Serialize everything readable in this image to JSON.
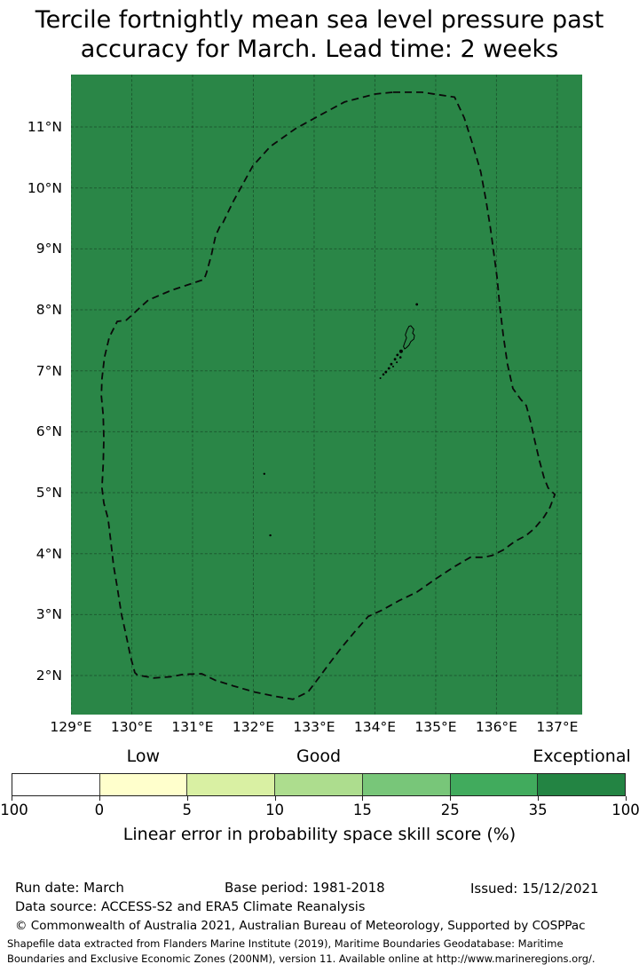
{
  "title": {
    "line1": "Tercile fortnightly mean sea level pressure past",
    "line2": "accuracy for March. Lead time: 2 weeks"
  },
  "map": {
    "region": "Palau Exclusive Economic Zone",
    "fill_color": "#2a8647",
    "grid_color": "rgba(0,0,0,0.32)",
    "boundary_color": "#0a0a0a",
    "island_outline_color": "#000000",
    "extent": {
      "lon_min": 129.0,
      "lon_max": 137.41,
      "lat_min": 1.36,
      "lat_max": 11.86
    },
    "x_ticks": [
      {
        "value": 129,
        "label": "129°E"
      },
      {
        "value": 130,
        "label": "130°E"
      },
      {
        "value": 131,
        "label": "131°E"
      },
      {
        "value": 132,
        "label": "132°E"
      },
      {
        "value": 133,
        "label": "133°E"
      },
      {
        "value": 134,
        "label": "134°E"
      },
      {
        "value": 135,
        "label": "135°E"
      },
      {
        "value": 136,
        "label": "136°E"
      },
      {
        "value": 137,
        "label": "137°E"
      }
    ],
    "y_ticks": [
      {
        "value": 11,
        "label": "11°N"
      },
      {
        "value": 10,
        "label": "10°N"
      },
      {
        "value": 9,
        "label": "9°N"
      },
      {
        "value": 8,
        "label": "8°N"
      },
      {
        "value": 7,
        "label": "7°N"
      },
      {
        "value": 6,
        "label": "6°N"
      },
      {
        "value": 5,
        "label": "5°N"
      },
      {
        "value": 4,
        "label": "4°N"
      },
      {
        "value": 3,
        "label": "3°N"
      },
      {
        "value": 2,
        "label": "2°N"
      }
    ],
    "eez_boundary_lonlat": [
      [
        134.3,
        11.57
      ],
      [
        134.77,
        11.57
      ],
      [
        135.31,
        11.49
      ],
      [
        135.47,
        11.15
      ],
      [
        135.61,
        10.71
      ],
      [
        135.74,
        10.27
      ],
      [
        135.83,
        9.78
      ],
      [
        135.9,
        9.34
      ],
      [
        135.96,
        8.9
      ],
      [
        136.01,
        8.53
      ],
      [
        136.05,
        8.09
      ],
      [
        136.11,
        7.59
      ],
      [
        136.18,
        7.11
      ],
      [
        136.27,
        6.71
      ],
      [
        136.4,
        6.53
      ],
      [
        136.49,
        6.43
      ],
      [
        136.56,
        6.17
      ],
      [
        136.63,
        5.85
      ],
      [
        136.71,
        5.51
      ],
      [
        136.78,
        5.25
      ],
      [
        136.85,
        5.08
      ],
      [
        136.96,
        4.97
      ],
      [
        136.88,
        4.76
      ],
      [
        136.78,
        4.6
      ],
      [
        136.63,
        4.42
      ],
      [
        136.49,
        4.3
      ],
      [
        136.3,
        4.2
      ],
      [
        136.11,
        4.06
      ],
      [
        135.93,
        3.97
      ],
      [
        135.79,
        3.94
      ],
      [
        135.57,
        3.94
      ],
      [
        135.5,
        3.9
      ],
      [
        135.28,
        3.77
      ],
      [
        134.99,
        3.58
      ],
      [
        134.69,
        3.37
      ],
      [
        134.4,
        3.23
      ],
      [
        134.11,
        3.07
      ],
      [
        133.89,
        2.97
      ],
      [
        133.67,
        2.72
      ],
      [
        133.45,
        2.46
      ],
      [
        133.23,
        2.17
      ],
      [
        133.09,
        1.98
      ],
      [
        132.9,
        1.73
      ],
      [
        132.65,
        1.61
      ],
      [
        132.36,
        1.66
      ],
      [
        132.02,
        1.73
      ],
      [
        131.67,
        1.83
      ],
      [
        131.38,
        1.92
      ],
      [
        131.15,
        2.03
      ],
      [
        130.85,
        2.02
      ],
      [
        130.64,
        1.98
      ],
      [
        130.36,
        1.96
      ],
      [
        130.09,
        2.01
      ],
      [
        130.05,
        2.05
      ],
      [
        129.98,
        2.31
      ],
      [
        129.91,
        2.65
      ],
      [
        129.83,
        3.01
      ],
      [
        129.76,
        3.45
      ],
      [
        129.7,
        3.81
      ],
      [
        129.66,
        4.16
      ],
      [
        129.61,
        4.57
      ],
      [
        129.54,
        4.83
      ],
      [
        129.51,
        5.08
      ],
      [
        129.53,
        5.47
      ],
      [
        129.54,
        5.88
      ],
      [
        129.53,
        6.27
      ],
      [
        129.5,
        6.59
      ],
      [
        129.51,
        6.87
      ],
      [
        129.55,
        7.22
      ],
      [
        129.63,
        7.55
      ],
      [
        129.76,
        7.81
      ],
      [
        129.91,
        7.83
      ],
      [
        130.27,
        8.16
      ],
      [
        130.65,
        8.32
      ],
      [
        131.04,
        8.45
      ],
      [
        131.19,
        8.5
      ],
      [
        131.23,
        8.61
      ],
      [
        131.31,
        8.9
      ],
      [
        131.38,
        9.22
      ],
      [
        131.45,
        9.37
      ],
      [
        131.5,
        9.43
      ],
      [
        131.67,
        9.78
      ],
      [
        131.99,
        10.36
      ],
      [
        132.28,
        10.68
      ],
      [
        132.69,
        10.97
      ],
      [
        133.09,
        11.19
      ],
      [
        133.5,
        11.41
      ],
      [
        134.0,
        11.54
      ]
    ],
    "islands": {
      "main_island_outline_lonlat": [
        [
          134.59,
          7.74
        ],
        [
          134.64,
          7.68
        ],
        [
          134.62,
          7.62
        ],
        [
          134.65,
          7.58
        ],
        [
          134.64,
          7.52
        ],
        [
          134.59,
          7.48
        ],
        [
          134.56,
          7.42
        ],
        [
          134.52,
          7.38
        ],
        [
          134.49,
          7.36
        ],
        [
          134.47,
          7.4
        ],
        [
          134.49,
          7.46
        ],
        [
          134.52,
          7.54
        ],
        [
          134.5,
          7.59
        ],
        [
          134.53,
          7.67
        ],
        [
          134.56,
          7.73
        ]
      ],
      "islets_lonlat_r": [
        [
          134.69,
          8.09,
          1.4
        ],
        [
          134.43,
          7.32,
          2.0
        ],
        [
          134.37,
          7.26,
          1.4
        ],
        [
          134.42,
          7.22,
          1.3
        ],
        [
          134.33,
          7.19,
          1.4
        ],
        [
          134.36,
          7.14,
          1.0
        ],
        [
          134.27,
          7.11,
          1.4
        ],
        [
          134.3,
          7.07,
          1.0
        ],
        [
          134.23,
          7.04,
          1.4
        ],
        [
          134.18,
          6.98,
          1.4
        ],
        [
          134.14,
          6.94,
          1.3
        ],
        [
          134.09,
          6.88,
          1.0
        ],
        [
          132.18,
          5.31,
          1.2
        ],
        [
          132.28,
          4.3,
          1.2
        ]
      ]
    }
  },
  "colorbar": {
    "categories": [
      {
        "label": "Low",
        "segment_index": 1
      },
      {
        "label": "Good",
        "segment_index": 3
      },
      {
        "label": "Exceptional",
        "segment_index": 6
      }
    ],
    "segments": [
      {
        "min": "-100",
        "max": "0",
        "color": "#ffffff"
      },
      {
        "min": "0",
        "max": "5",
        "color": "#ffffcc"
      },
      {
        "min": "5",
        "max": "10",
        "color": "#d9f0a3"
      },
      {
        "min": "10",
        "max": "15",
        "color": "#addd8e"
      },
      {
        "min": "15",
        "max": "25",
        "color": "#78c679"
      },
      {
        "min": "25",
        "max": "35",
        "color": "#41ab5d"
      },
      {
        "min": "35",
        "max": "100",
        "color": "#238443"
      }
    ],
    "tick_labels": [
      "-100",
      "0",
      "5",
      "10",
      "15",
      "25",
      "35",
      "100"
    ],
    "axis_label": "Linear error in probability space skill score (%)"
  },
  "footer": {
    "run_date": "Run date: March",
    "base_period": "Base period: 1981-2018",
    "issued": "Issued: 15/12/2021",
    "data_source": "Data source: ACCESS-S2 and ERA5 Climate Reanalysis",
    "copyright": "© Commonwealth of Australia 2021, Australian Bureau of Meteorology, Supported by COSPPac",
    "shapefile_note_line1": "Shapefile data extracted from Flanders Marine Institute (2019), Maritime Boundaries Geodatabase: Maritime",
    "shapefile_note_line2": "Boundaries and Exclusive Economic Zones (200NM), version 11. Available online at http://www.marineregions.org/."
  }
}
